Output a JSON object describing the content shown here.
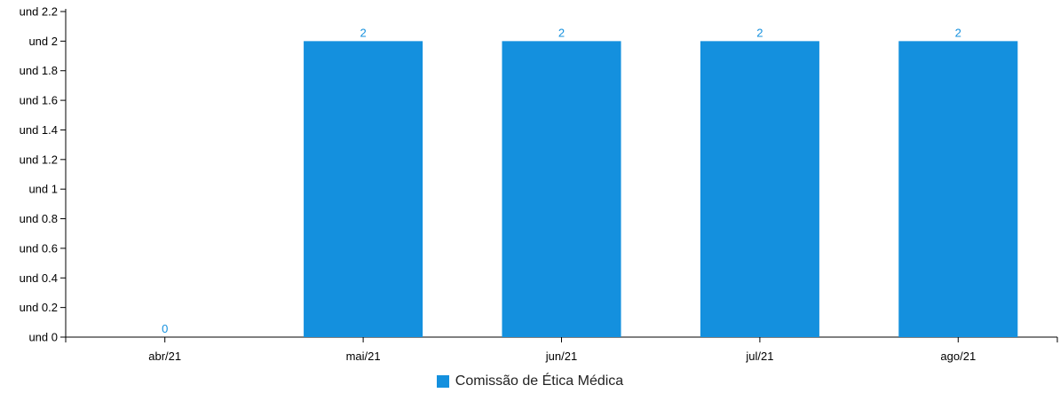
{
  "chart_data": {
    "type": "bar",
    "title": "",
    "xlabel": "",
    "ylabel": "",
    "categories": [
      "abr/21",
      "mai/21",
      "jun/21",
      "jul/21",
      "ago/21"
    ],
    "series": [
      {
        "name": "Comissão de Ética Médica",
        "values": [
          0,
          2,
          2,
          2,
          2
        ],
        "color": "#1490de"
      }
    ],
    "data_labels": [
      "0",
      "2",
      "2",
      "2",
      "2"
    ],
    "ylim": [
      0,
      2.2
    ],
    "y_ticks": [
      0,
      0.2,
      0.4,
      0.6,
      0.8,
      1,
      1.2,
      1.4,
      1.6,
      1.8,
      2,
      2.2
    ],
    "y_tick_labels": [
      "und 0",
      "und 0.2",
      "und 0.4",
      "und 0.6",
      "und 0.8",
      "und 1",
      "und 1.2",
      "und 1.4",
      "und 1.6",
      "und 1.8",
      "und 2",
      "und 2.2"
    ],
    "grid": false,
    "legend_position": "bottom-center",
    "colors": {
      "bar": "#1490de",
      "data_label": "#1490de",
      "axis": "#000000"
    }
  }
}
